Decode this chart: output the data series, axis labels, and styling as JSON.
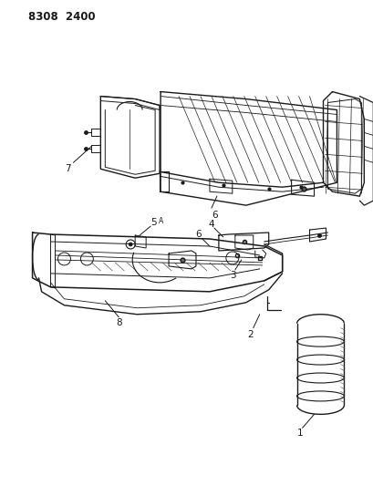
{
  "header_text": "8308  2400",
  "background_color": "#ffffff",
  "line_color": "#1a1a1a",
  "text_color": "#1a1a1a",
  "figsize": [
    4.1,
    5.33
  ],
  "dpi": 100
}
